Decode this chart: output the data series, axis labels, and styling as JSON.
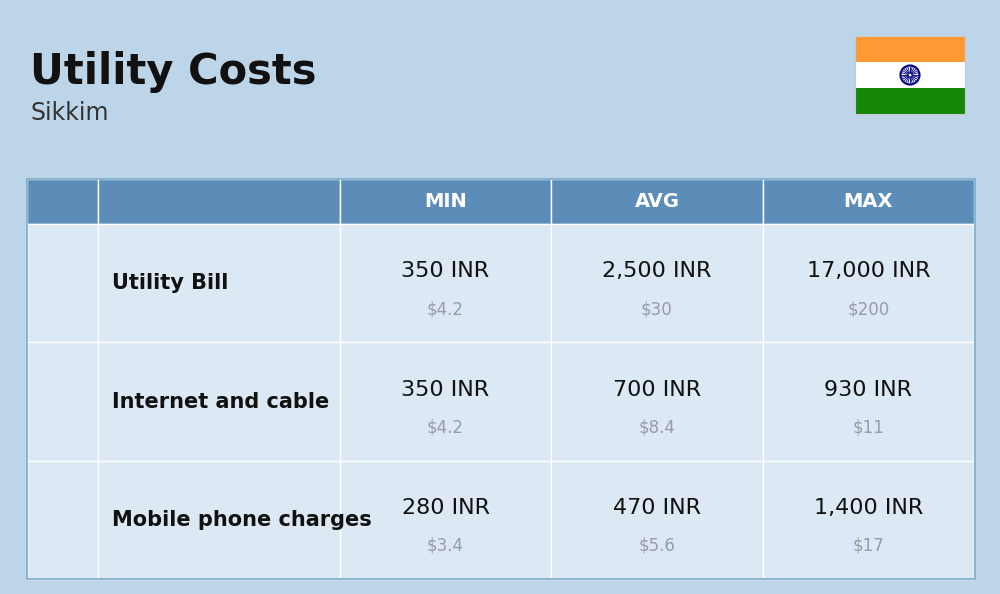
{
  "title": "Utility Costs",
  "subtitle": "Sikkim",
  "background_color": "#bdd5e8",
  "header_bg_color": "#5b8db8",
  "header_text_color": "#ffffff",
  "row_bg_color_1": "#dce8f3",
  "row_bg_color_2": "#ccdcea",
  "columns": [
    "MIN",
    "AVG",
    "MAX"
  ],
  "rows": [
    {
      "label": "Utility Bill",
      "min_inr": "350 INR",
      "min_usd": "$4.2",
      "avg_inr": "2,500 INR",
      "avg_usd": "$30",
      "max_inr": "17,000 INR",
      "max_usd": "$200"
    },
    {
      "label": "Internet and cable",
      "min_inr": "350 INR",
      "min_usd": "$4.2",
      "avg_inr": "700 INR",
      "avg_usd": "$8.4",
      "max_inr": "930 INR",
      "max_usd": "$11"
    },
    {
      "label": "Mobile phone charges",
      "min_inr": "280 INR",
      "min_usd": "$3.4",
      "avg_inr": "470 INR",
      "avg_usd": "$5.6",
      "max_inr": "1,400 INR",
      "max_usd": "$17"
    }
  ],
  "title_fontsize": 30,
  "subtitle_fontsize": 17,
  "header_fontsize": 14,
  "cell_inr_fontsize": 16,
  "cell_usd_fontsize": 12,
  "label_fontsize": 15,
  "flag_colors": [
    "#FF9933",
    "#FFFFFF",
    "#138808"
  ]
}
